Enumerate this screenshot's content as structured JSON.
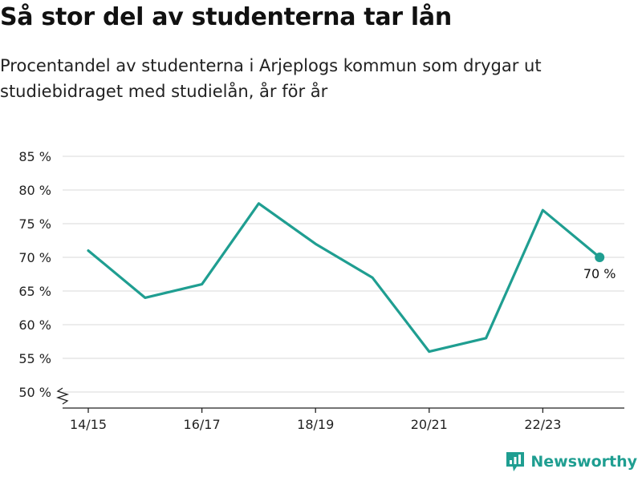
{
  "chart_data": {
    "type": "line",
    "title": "Så stor del av studenterna tar lån",
    "subtitle": "Procentandel av studenterna i Arjeplogs kommun som drygar ut studiebidraget med studielån, år för år",
    "x": [
      "14/15",
      "15/16",
      "16/17",
      "17/18",
      "18/19",
      "19/20",
      "20/21",
      "21/22",
      "22/23",
      "23/24"
    ],
    "x_tick_labels": [
      "14/15",
      "16/17",
      "18/19",
      "20/21",
      "22/23"
    ],
    "series": [
      {
        "values": [
          71,
          64,
          66,
          78,
          72,
          67,
          56,
          58,
          77,
          70
        ]
      }
    ],
    "y_tick_values": [
      50,
      55,
      60,
      65,
      70,
      75,
      80,
      85
    ],
    "y_tick_labels": [
      "50 %",
      "55 %",
      "60 %",
      "65 %",
      "70 %",
      "75 %",
      "80 %",
      "85 %"
    ],
    "ylim": [
      50,
      85
    ],
    "axis_break": true,
    "grid": true,
    "line_color": "#1f9e91",
    "end_label": "70 %"
  },
  "brand": {
    "name": "Newsworthy",
    "color": "#1f9e91",
    "icon": "bar-chart-logo-icon"
  }
}
